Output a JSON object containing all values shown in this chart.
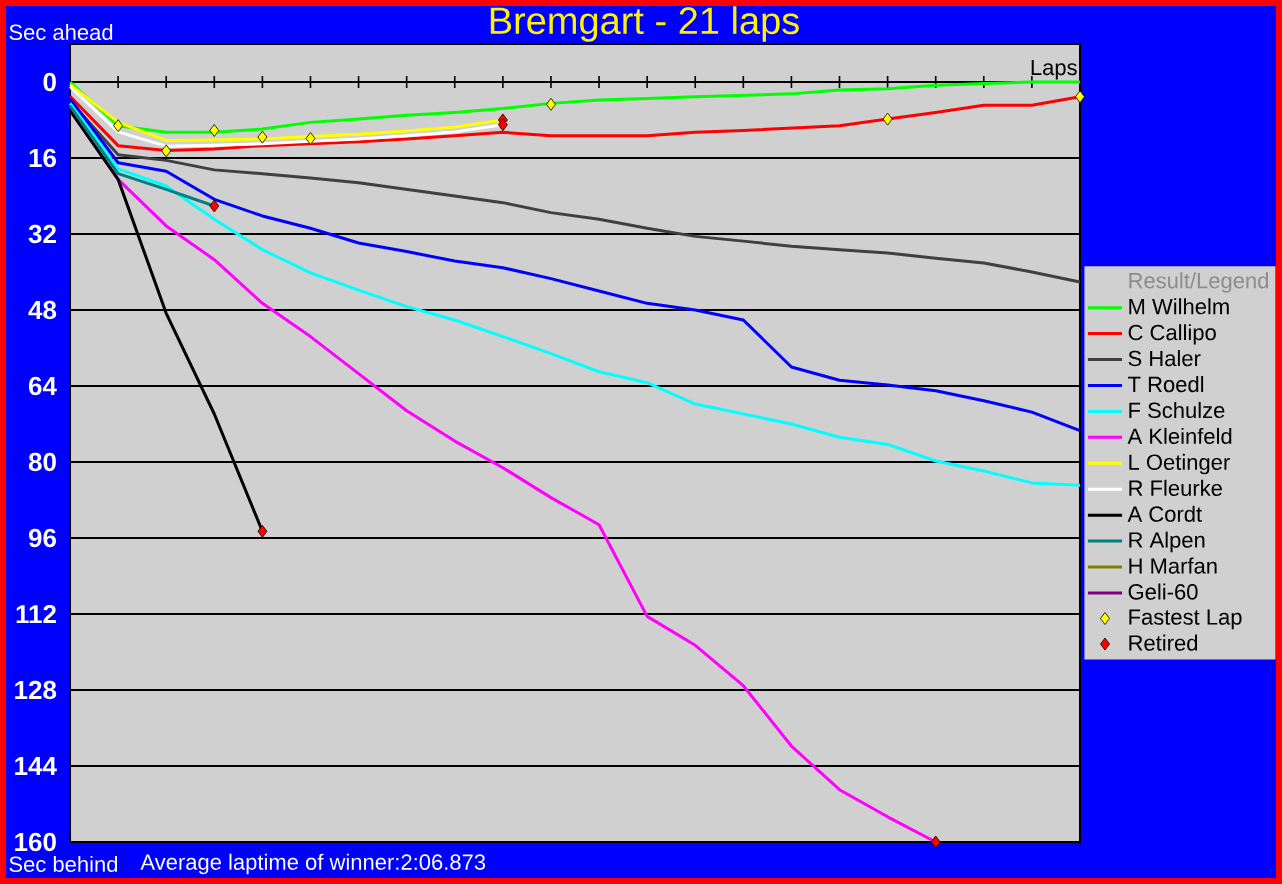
{
  "chart_data": {
    "type": "line",
    "title": "Bremgart - 21 laps",
    "xlabel": "Laps",
    "legend_title": "Result/Legend",
    "annotations": [
      "Sec ahead",
      "Sec behind",
      "Average laptime of winner:2:06.873"
    ],
    "categories": [
      null,
      null,
      null,
      null,
      null,
      null,
      null,
      null,
      null,
      null,
      null,
      null,
      null,
      null,
      null,
      null,
      null,
      null,
      null,
      null,
      null,
      null
    ],
    "ylim": [
      160,
      -8
    ],
    "yticks": [
      0,
      16,
      32,
      48,
      64,
      80,
      96,
      112,
      128,
      144,
      160
    ],
    "tick_labels": "y",
    "grid": "y",
    "legend": "right",
    "marker": "none",
    "line_style": "solid",
    "series": [
      {
        "name": "M Wilhelm",
        "color": "#00ff00",
        "values": [
          0,
          9.2,
          10.6,
          10.6,
          9.9,
          8.5,
          7.8,
          7.0,
          6.4,
          5.6,
          4.5,
          3.8,
          3.5,
          3.1,
          2.8,
          2.5,
          1.7,
          1.4,
          0.7,
          0.3,
          0,
          0
        ]
      },
      {
        "name": "C Callipo",
        "color": "#ff0000",
        "values": [
          3,
          13.4,
          14.4,
          14.1,
          13.4,
          13.0,
          12.6,
          12.0,
          11.3,
          10.6,
          11.3,
          11.3,
          11.3,
          10.6,
          10.2,
          9.7,
          9.2,
          7.8,
          6.4,
          4.9,
          4.9,
          3.1
        ]
      },
      {
        "name": "S Haler",
        "color": "#404040",
        "values": [
          4,
          15.3,
          16.5,
          18.5,
          19.3,
          20.2,
          21.2,
          22.6,
          24.0,
          25.4,
          27.5,
          28.9,
          30.8,
          32.5,
          33.5,
          34.6,
          35.3,
          36.0,
          37.1,
          38.1,
          40.0,
          42.1
        ]
      },
      {
        "name": "T Roedl",
        "color": "#0000ff",
        "values": [
          3.5,
          17,
          18.8,
          24.7,
          28.2,
          30.8,
          33.9,
          35.7,
          37.7,
          39.1,
          41.4,
          44,
          46.6,
          48.0,
          50.1,
          60.0,
          62.8,
          63.8,
          65.0,
          67.1,
          69.5,
          73.4
        ]
      },
      {
        "name": "F Schulze",
        "color": "#00ffff",
        "values": [
          4.5,
          18.3,
          21.9,
          28.9,
          35.3,
          40.2,
          43.8,
          47.3,
          50.1,
          53.6,
          57.2,
          61,
          63.3,
          67.8,
          69.9,
          72.0,
          74.8,
          76.3,
          79.8,
          81.9,
          84.4,
          84.9
        ]
      },
      {
        "name": "A Kleinfeld",
        "color": "#ff00ff",
        "values": [
          6,
          20.5,
          30.3,
          37.4,
          46.6,
          53.6,
          61.4,
          69.2,
          75.6,
          81.2,
          87.5,
          93.2,
          112.5,
          118.6,
          127.1,
          139.8,
          149.0,
          154.7,
          160,
          null,
          null,
          null
        ]
      },
      {
        "name": "L Oetinger",
        "color": "#ffff00",
        "values": [
          0.5,
          8.5,
          12.3,
          12.2,
          12,
          11.5,
          11,
          10.3,
          9.5,
          8,
          null,
          null,
          null,
          null,
          null,
          null,
          null,
          null,
          null,
          null,
          null,
          null
        ]
      },
      {
        "name": "R Fleurke",
        "color": "#ffffff",
        "values": [
          1,
          10.5,
          13.5,
          13.3,
          13,
          12.5,
          12,
          11.3,
          10.5,
          9,
          null,
          null,
          null,
          null,
          null,
          null,
          null,
          null,
          null,
          null,
          null,
          null
        ]
      },
      {
        "name": "A Cordt",
        "color": "#000000",
        "values": [
          6,
          20.5,
          48.7,
          69.9,
          94.6,
          null,
          null,
          null,
          null,
          null,
          null,
          null,
          null,
          null,
          null,
          null,
          null,
          null,
          null,
          null,
          null,
          null
        ]
      },
      {
        "name": "R Alpen",
        "color": "#008080",
        "values": [
          5,
          19.3,
          22.6,
          26.1,
          null,
          null,
          null,
          null,
          null,
          null,
          null,
          null,
          null,
          null,
          null,
          null,
          null,
          null,
          null,
          null,
          null,
          null
        ]
      },
      {
        "name": "H Marfan",
        "color": "#808000",
        "values": [
          null,
          null,
          null,
          null,
          null,
          null,
          null,
          null,
          null,
          null,
          null,
          null,
          null,
          null,
          null,
          null,
          null,
          null,
          null,
          null,
          null,
          null
        ]
      },
      {
        "name": "Geli-60",
        "color": "#800080",
        "values": [
          null,
          null,
          null,
          null,
          null,
          null,
          null,
          null,
          null,
          null,
          null,
          null,
          null,
          null,
          null,
          null,
          null,
          null,
          null,
          null,
          null,
          null
        ]
      },
      {
        "name": "Fastest Lap",
        "type": "scatter",
        "marker": "diamond",
        "color": "#ffff00",
        "values": [
          null,
          9.2,
          14.5,
          10.2,
          11.6,
          11.9,
          null,
          null,
          null,
          null,
          4.7,
          null,
          null,
          null,
          null,
          null,
          null,
          7.8,
          null,
          null,
          null,
          3.1
        ]
      },
      {
        "name": "Retired",
        "type": "scatter",
        "marker": "diamond",
        "color": "#ff0000",
        "values": [
          null,
          null,
          null,
          26.1,
          94.6,
          null,
          null,
          null,
          null,
          8,
          null,
          null,
          null,
          null,
          null,
          null,
          null,
          null,
          160,
          null,
          null,
          null
        ]
      },
      {
        "type": "scatter",
        "marker": "diamond",
        "color": "#ff0000",
        "values": [
          null,
          null,
          null,
          null,
          null,
          null,
          null,
          null,
          null,
          9,
          null,
          null,
          null,
          null,
          null,
          null,
          null,
          null,
          null,
          null,
          null,
          null
        ]
      }
    ]
  }
}
